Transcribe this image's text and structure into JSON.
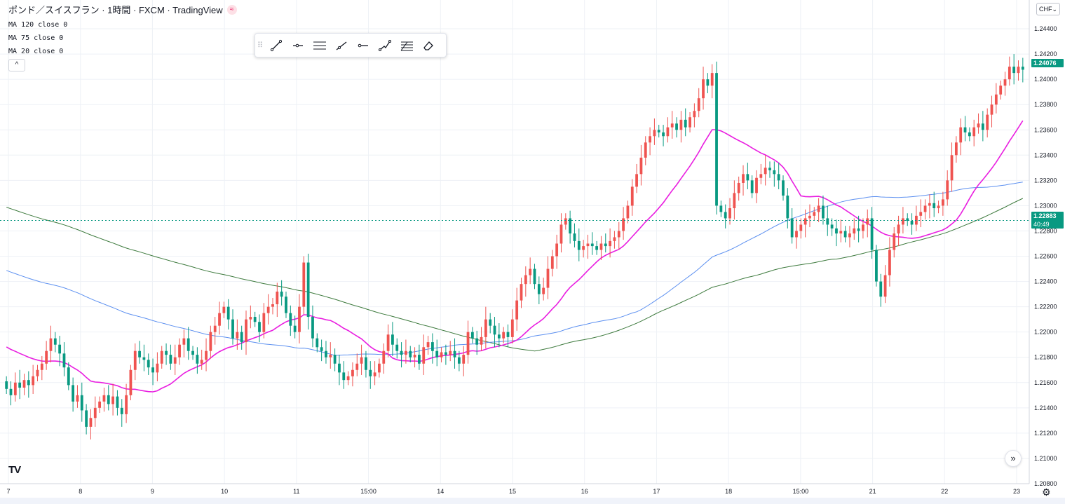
{
  "legend": {
    "title": "ポンド／スイスフラン · 1時間 · FXCM · TradingView",
    "live_badge": "≈",
    "ma_lines": [
      "MA 120 close 0",
      "MA 75 close 0",
      "MA 20 close 0"
    ],
    "toggle": "^"
  },
  "toolbar": {
    "grip": "⠿",
    "tools": [
      {
        "name": "trend-line-tool"
      },
      {
        "name": "horizontal-ray-tool"
      },
      {
        "name": "parallel-channel-tool"
      },
      {
        "name": "ray-tool"
      },
      {
        "name": "horizontal-line-tool"
      },
      {
        "name": "path-tool"
      },
      {
        "name": "fib-retracement-tool"
      },
      {
        "name": "eraser-tool"
      }
    ]
  },
  "price_scale": {
    "currency": "CHF",
    "current_price": "1.24076",
    "last_price": "1.22883",
    "countdown": "40:49"
  },
  "scroll_button": "»",
  "logo": "TV",
  "settings_icon": "⚙",
  "colors": {
    "bull": "#ef5350",
    "bear": "#089981",
    "ma20": "#e91ee0",
    "ma75": "#5b8ff0",
    "ma120": "#3d7a3d",
    "grid": "#eef1f6",
    "price_line": "#089981"
  },
  "chart_data": {
    "type": "candlestick",
    "symbol": "GBP/CHF",
    "interval": "1時間",
    "ylim": [
      1.208,
      1.2455
    ],
    "ticks": [
      "1.24400",
      "1.24200",
      "1.24000",
      "1.23800",
      "1.23600",
      "1.23400",
      "1.23200",
      "1.23000",
      "1.22800",
      "1.22600",
      "1.22400",
      "1.22200",
      "1.22000",
      "1.21800",
      "1.21600",
      "1.21400",
      "1.21200",
      "1.21000",
      "1.20800"
    ],
    "x_labels": [
      "7",
      "8",
      "9",
      "10",
      "11",
      "15:00",
      "14",
      "15",
      "16",
      "17",
      "18",
      "15:00",
      "21",
      "22",
      "23"
    ],
    "last_price": 1.22883,
    "current_price": 1.24076,
    "closes": [
      1.2155,
      1.215,
      1.216,
      1.2156,
      1.2162,
      1.2158,
      1.2165,
      1.217,
      1.2175,
      1.2185,
      1.2195,
      1.219,
      1.2183,
      1.2172,
      1.2158,
      1.2145,
      1.215,
      1.2138,
      1.2125,
      1.2132,
      1.214,
      1.2145,
      1.215,
      1.2143,
      1.2149,
      1.214,
      1.2135,
      1.215,
      1.217,
      1.2185,
      1.218,
      1.2178,
      1.2172,
      1.2168,
      1.2175,
      1.2185,
      1.2182,
      1.2175,
      1.218,
      1.219,
      1.2195,
      1.2185,
      1.2182,
      1.2175,
      1.2178,
      1.2185,
      1.22,
      1.2205,
      1.2215,
      1.222,
      1.221,
      1.2195,
      1.22,
      1.2192,
      1.221,
      1.2212,
      1.2208,
      1.22,
      1.2215,
      1.222,
      1.2222,
      1.2232,
      1.2228,
      1.2215,
      1.2205,
      1.22,
      1.222,
      1.2255,
      1.2212,
      1.2195,
      1.2188,
      1.2185,
      1.218,
      1.2182,
      1.2175,
      1.2168,
      1.2162,
      1.2165,
      1.217,
      1.2175,
      1.218,
      1.217,
      1.2165,
      1.2168,
      1.2175,
      1.2185,
      1.2198,
      1.219,
      1.2185,
      1.2182,
      1.2185,
      1.218,
      1.2182,
      1.2175,
      1.2188,
      1.2192,
      1.2185,
      1.218,
      1.2184,
      1.2182,
      1.2185,
      1.218,
      1.2175,
      1.2182,
      1.22,
      1.2195,
      1.219,
      1.2196,
      1.221,
      1.2205,
      1.2198,
      1.2195,
      1.22,
      1.2196,
      1.221,
      1.2225,
      1.2238,
      1.2245,
      1.225,
      1.2238,
      1.223,
      1.2235,
      1.225,
      1.226,
      1.227,
      1.2285,
      1.229,
      1.2278,
      1.2272,
      1.2265,
      1.2268,
      1.227,
      1.2268,
      1.2265,
      1.227,
      1.2268,
      1.2272,
      1.2275,
      1.228,
      1.229,
      1.23,
      1.2315,
      1.2325,
      1.2338,
      1.235,
      1.2355,
      1.236,
      1.2358,
      1.2355,
      1.2362,
      1.2365,
      1.236,
      1.2368,
      1.2362,
      1.237,
      1.2375,
      1.2385,
      1.24,
      1.2395,
      1.2405,
      1.23,
      1.2295,
      1.229,
      1.2298,
      1.231,
      1.2318,
      1.2325,
      1.232,
      1.231,
      1.2322,
      1.2325,
      1.233,
      1.2328,
      1.2325,
      1.232,
      1.2308,
      1.229,
      1.2275,
      1.228,
      1.2285,
      1.229,
      1.2292,
      1.2295,
      1.23,
      1.229,
      1.2285,
      1.2282,
      1.2278,
      1.228,
      1.2275,
      1.2278,
      1.2282,
      1.228,
      1.2285,
      1.229,
      1.2265,
      1.224,
      1.2228,
      1.2245,
      1.2265,
      1.2278,
      1.2285,
      1.229,
      1.2288,
      1.2285,
      1.2292,
      1.2295,
      1.23,
      1.2302,
      1.2298,
      1.23,
      1.2305,
      1.232,
      1.234,
      1.235,
      1.2362,
      1.2358,
      1.2355,
      1.2362,
      1.2365,
      1.236,
      1.2372,
      1.238,
      1.2388,
      1.2395,
      1.24,
      1.241,
      1.2405,
      1.241,
      1.24076
    ]
  }
}
